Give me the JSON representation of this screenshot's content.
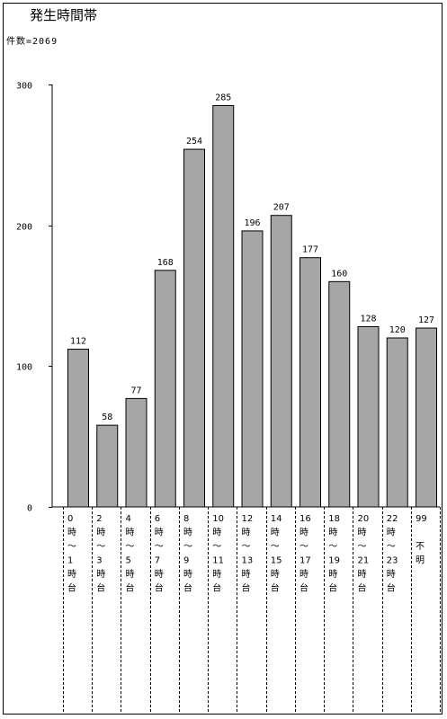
{
  "chart_data": {
    "type": "bar",
    "title": "発生時間帯",
    "subtitle": "件数=2069",
    "categories": [
      [
        "0",
        "時",
        "～",
        "1",
        "時",
        "台"
      ],
      [
        "2",
        "時",
        "～",
        "3",
        "時",
        "台"
      ],
      [
        "4",
        "時",
        "～",
        "5",
        "時",
        "台"
      ],
      [
        "6",
        "時",
        "～",
        "7",
        "時",
        "台"
      ],
      [
        "8",
        "時",
        "～",
        "9",
        "時",
        "台"
      ],
      [
        "10",
        "時",
        "～",
        "11",
        "時",
        "台"
      ],
      [
        "12",
        "時",
        "～",
        "13",
        "時",
        "台"
      ],
      [
        "14",
        "時",
        "～",
        "15",
        "時",
        "台"
      ],
      [
        "16",
        "時",
        "～",
        "17",
        "時",
        "台"
      ],
      [
        "18",
        "時",
        "～",
        "19",
        "時",
        "台"
      ],
      [
        "20",
        "時",
        "～",
        "21",
        "時",
        "台"
      ],
      [
        "22",
        "時",
        "～",
        "23",
        "時",
        "台"
      ],
      [
        "99",
        "",
        "不",
        "明"
      ]
    ],
    "values": [
      112,
      58,
      77,
      168,
      254,
      285,
      196,
      207,
      177,
      160,
      128,
      120,
      127
    ],
    "ylim": [
      0,
      300
    ],
    "yticks": [
      0,
      100,
      200,
      300
    ],
    "grid": false,
    "colors": {
      "bar": "#a6a6a6",
      "edge": "#000000"
    }
  }
}
